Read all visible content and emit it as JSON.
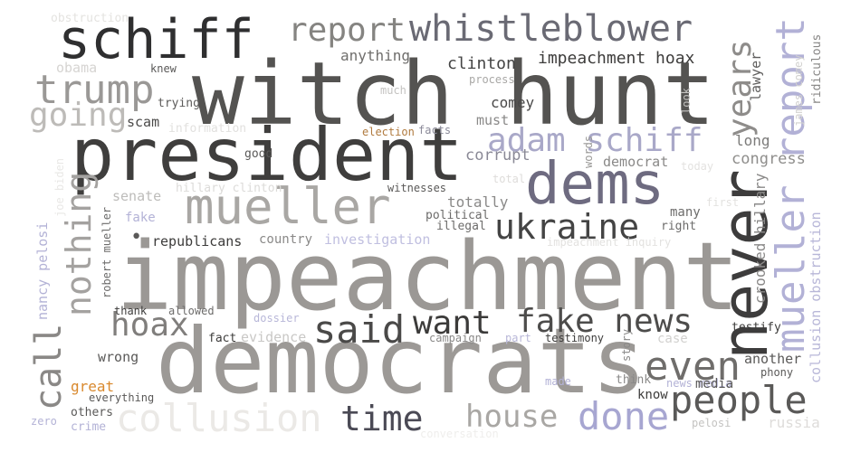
{
  "words": {
    "impeachment": {
      "text": "impeachment",
      "color": "#9b9895"
    },
    "witch_hunt": {
      "text": "witch hunt",
      "color": "#545351"
    },
    "democrats": {
      "text": "democrats",
      "color": "#9c9996"
    },
    "president": {
      "text": "president",
      "color": "#3f3e3d"
    },
    "schiff": {
      "text": "schiff",
      "color": "#2f2f30"
    },
    "dems": {
      "text": "dems",
      "color": "#6e6b80"
    },
    "mueller": {
      "text": "mueller",
      "color": "#a9a7a4"
    },
    "never": {
      "text": "never",
      "color": "#3d3c3c"
    },
    "whistleblower": {
      "text": "whistleblower",
      "color": "#6a6a74"
    },
    "report": {
      "text": "report",
      "color": "#858481"
    },
    "trump": {
      "text": "trump",
      "color": "#9a9896"
    },
    "going": {
      "text": "going",
      "color": "#bdbbb8"
    },
    "adam_schiff": {
      "text": "adam schiff",
      "color": "#a9a8c8"
    },
    "mueller_report": {
      "text": "mueller report",
      "color": "#b2b1d6"
    },
    "ukraine": {
      "text": "ukraine",
      "color": "#444444"
    },
    "years": {
      "text": "years",
      "color": "#8e8c8a"
    },
    "nothing": {
      "text": "nothing",
      "color": "#a4a2a0"
    },
    "call": {
      "text": "call",
      "color": "#8a8886"
    },
    "hoax": {
      "text": "hoax",
      "color": "#807e7c"
    },
    "said": {
      "text": "said",
      "color": "#4a4948"
    },
    "want": {
      "text": "want",
      "color": "#3c3b3a"
    },
    "fake_news": {
      "text": "fake news",
      "color": "#4d4c4b"
    },
    "even": {
      "text": "even",
      "color": "#6f6d6b"
    },
    "people": {
      "text": "people",
      "color": "#5a5958"
    },
    "time": {
      "text": "time",
      "color": "#4b4a55"
    },
    "house": {
      "text": "house",
      "color": "#a9a7a4"
    },
    "done": {
      "text": "done",
      "color": "#a7a6d1"
    },
    "collusion": {
      "text": "collusion",
      "color": "#ebe9e6"
    },
    "impeachment_hoax": {
      "text": "impeachment hoax",
      "color": "#3d3c3b"
    },
    "clinton": {
      "text": "clinton",
      "color": "#444444"
    },
    "anything": {
      "text": "anything",
      "color": "#6f6e6c"
    },
    "obstruction": {
      "text": "obstruction",
      "color": "#e4e3e0"
    },
    "obama": {
      "text": "obama",
      "color": "#d6d4d2"
    },
    "knew": {
      "text": "knew",
      "color": "#5a5958"
    },
    "trying": {
      "text": "trying",
      "color": "#5c5b5a"
    },
    "scam": {
      "text": "scam",
      "color": "#4b4a49"
    },
    "information": {
      "text": "information",
      "color": "#e2e1df"
    },
    "election": {
      "text": "election",
      "color": "#b07a3e"
    },
    "facts": {
      "text": "facts",
      "color": "#8b8a99"
    },
    "good": {
      "text": "good",
      "color": "#5a5958"
    },
    "comey": {
      "text": "comey",
      "color": "#4a4949"
    },
    "must": {
      "text": "must",
      "color": "#8a8988"
    },
    "process": {
      "text": "process",
      "color": "#a9a8a6"
    },
    "much": {
      "text": "much",
      "color": "#c4c3c1"
    },
    "corrupt": {
      "text": "corrupt",
      "color": "#8a8996"
    },
    "total": {
      "text": "total",
      "color": "#dedcda"
    },
    "democrat": {
      "text": "democrat",
      "color": "#8a8988"
    },
    "words": {
      "text": "words",
      "color": "#9a9997"
    },
    "long": {
      "text": "long",
      "color": "#7c7b7a"
    },
    "congress": {
      "text": "congress",
      "color": "#8f8e8c"
    },
    "lawyer": {
      "text": "lawyer",
      "color": "#5e5d5c"
    },
    "ridiculous": {
      "text": "ridiculous",
      "color": "#888786"
    },
    "james_comey": {
      "text": "james comey",
      "color": "#d2d1cf"
    },
    "look": {
      "text": "look",
      "color": "#c4c3c1"
    },
    "today": {
      "text": "today",
      "color": "#e3e2e0"
    },
    "first": {
      "text": "first",
      "color": "#e3e2e0"
    },
    "crooked_hillary": {
      "text": "crooked hillary",
      "color": "#8a8988"
    },
    "collusion_obstruction": {
      "text": "collusion obstruction",
      "color": "#b8b7d8"
    },
    "senate": {
      "text": "senate",
      "color": "#bdbcba"
    },
    "hillary_clinton": {
      "text": "hillary clinton",
      "color": "#dcdbd9"
    },
    "witnesses": {
      "text": "witnesses",
      "color": "#5a5958"
    },
    "totally": {
      "text": "totally",
      "color": "#8a8988"
    },
    "political": {
      "text": "political",
      "color": "#6d6c6b"
    },
    "illegal": {
      "text": "illegal",
      "color": "#6d6c6b"
    },
    "many": {
      "text": "many",
      "color": "#6d6c6b"
    },
    "right": {
      "text": "right",
      "color": "#6d6c6b"
    },
    "fake": {
      "text": "fake",
      "color": "#b3b2d6"
    },
    "republicans": {
      "text": "republicans",
      "color": "#3d3c3b"
    },
    "country": {
      "text": "country",
      "color": "#8a8988"
    },
    "investigation": {
      "text": "investigation",
      "color": "#c0bfe0"
    },
    "impeachment_inquiry": {
      "text": "impeachment inquiry",
      "color": "#e3e2e0"
    },
    "nancy_pelosi": {
      "text": "nancy pelosi",
      "color": "#b3b2d6"
    },
    "robert_mueller": {
      "text": "robert mueller",
      "color": "#6d6c6b"
    },
    "joe_biden": {
      "text": "joe biden",
      "color": "#e9e8e6"
    },
    "thank": {
      "text": "thank",
      "color": "#3d3c3b"
    },
    "allowed": {
      "text": "allowed",
      "color": "#6d6c6b"
    },
    "dossier": {
      "text": "dossier",
      "color": "#b8b7d8"
    },
    "fact": {
      "text": "fact",
      "color": "#3d3c3b"
    },
    "evidence": {
      "text": "evidence",
      "color": "#c9c8c6"
    },
    "campaign": {
      "text": "campaign",
      "color": "#8a8988"
    },
    "part": {
      "text": "part",
      "color": "#b8b7d8"
    },
    "testimony": {
      "text": "testimony",
      "color": "#3d3c3b"
    },
    "case": {
      "text": "case",
      "color": "#d2d1cf"
    },
    "story": {
      "text": "story",
      "color": "#8a8988"
    },
    "testify": {
      "text": "testify",
      "color": "#3d3c3b"
    },
    "wrong": {
      "text": "wrong",
      "color": "#5a5958"
    },
    "another": {
      "text": "another",
      "color": "#5a5958"
    },
    "phony": {
      "text": "phony",
      "color": "#5a5958"
    },
    "great": {
      "text": "great",
      "color": "#d9892e"
    },
    "everything": {
      "text": "everything",
      "color": "#5a5958"
    },
    "others": {
      "text": "others",
      "color": "#5a5958"
    },
    "crime": {
      "text": "crime",
      "color": "#b3b2d6"
    },
    "zero": {
      "text": "zero",
      "color": "#b3b2d6"
    },
    "made": {
      "text": "made",
      "color": "#b3b2d6"
    },
    "think": {
      "text": "think",
      "color": "#8a8988"
    },
    "news_media": {
      "text": "news media",
      "color": "#b3b2d6"
    },
    "know": {
      "text": "know",
      "color": "#3d3c3b"
    },
    "media": {
      "text": "media",
      "color": "#5a5958"
    },
    "pelosi": {
      "text": "pelosi",
      "color": "#c4c3c1"
    },
    "russia": {
      "text": "russia",
      "color": "#dedcda"
    },
    "conversation": {
      "text": "conversation",
      "color": "#efeeec"
    },
    "bullet": {
      "text": "•",
      "color": "#5a5958"
    }
  }
}
